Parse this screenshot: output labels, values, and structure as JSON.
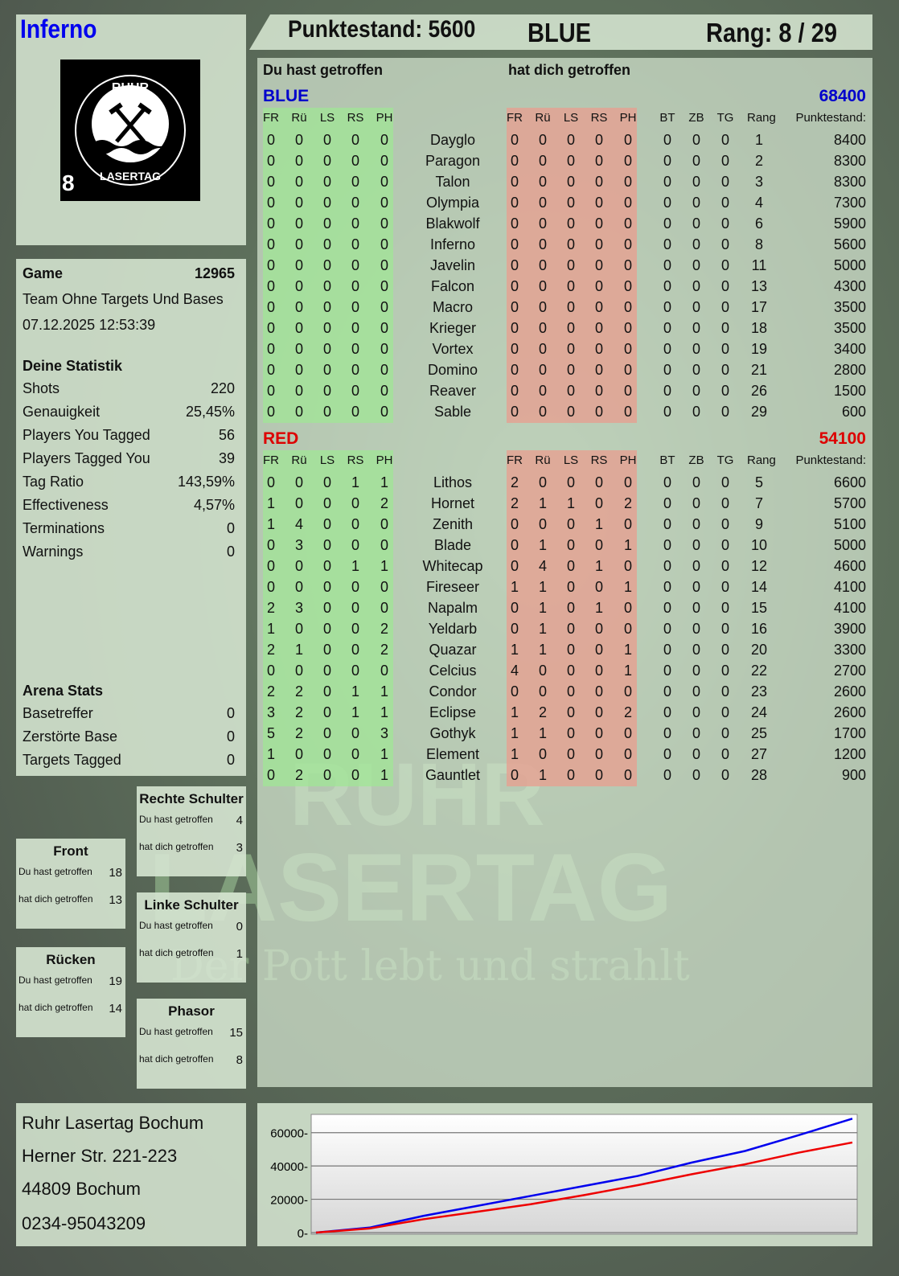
{
  "player": {
    "name": "Inferno",
    "logo_text": "RUHR LASERTAG",
    "logo_number": "8"
  },
  "header": {
    "score_label": "Punktestand: 5600",
    "team": "BLUE",
    "rank_label": "Rang: 8 / 29"
  },
  "colors": {
    "blue": "#0000cc",
    "red": "#dd0000",
    "hit_green": "#a8e6a0",
    "hit_red": "#e4a99a"
  },
  "watermark": {
    "line1": "RUHR",
    "line2": "LASERTAG",
    "line3": "Der Pott lebt und strahlt"
  },
  "game": {
    "label": "Game",
    "id": "12965",
    "mode": "Team Ohne Targets Und Bases",
    "datetime": "07.12.2025 12:53:39"
  },
  "stats": {
    "title": "Deine Statistik",
    "items": [
      {
        "label": "Shots",
        "value": "220"
      },
      {
        "label": "Genauigkeit",
        "value": "25,45%"
      },
      {
        "label": "Players You Tagged",
        "value": "56"
      },
      {
        "label": "Players Tagged You",
        "value": "39"
      },
      {
        "label": "Tag Ratio",
        "value": "143,59%"
      },
      {
        "label": "Effectiveness",
        "value": "4,57%"
      },
      {
        "label": "Terminations",
        "value": "0"
      },
      {
        "label": "Warnings",
        "value": "0"
      }
    ]
  },
  "arena": {
    "title": "Arena Stats",
    "items": [
      {
        "label": "Basetreffer",
        "value": "0"
      },
      {
        "label": "Zerstörte Base",
        "value": "0"
      },
      {
        "label": "Targets Tagged",
        "value": "0"
      }
    ]
  },
  "zones": [
    {
      "title": "Rechte Schulter",
      "you_hit_label": "Du hast getroffen",
      "you_hit": "4",
      "hit_you_label": "hat dich getroffen",
      "hit_you": "3"
    },
    {
      "title": "Front",
      "you_hit_label": "Du hast getroffen",
      "you_hit": "18",
      "hit_you_label": "hat dich getroffen",
      "hit_you": "13"
    },
    {
      "title": "Linke Schulter",
      "you_hit_label": "Du hast getroffen",
      "you_hit": "0",
      "hit_you_label": "hat dich getroffen",
      "hit_you": "1"
    },
    {
      "title": "Rücken",
      "you_hit_label": "Du hast getroffen",
      "you_hit": "19",
      "hit_you_label": "hat dich getroffen",
      "hit_you": "14"
    },
    {
      "title": "Phasor",
      "you_hit_label": "Du hast getroffen",
      "you_hit": "15",
      "hit_you_label": "hat dich getroffen",
      "hit_you": "8"
    }
  ],
  "table": {
    "you_hit_label": "Du hast getroffen",
    "hit_you_label": "hat dich getroffen",
    "columns": [
      "FR",
      "Rü",
      "LS",
      "RS",
      "PH",
      "FR",
      "Rü",
      "LS",
      "RS",
      "PH",
      "BT",
      "ZB",
      "TG",
      "Rang",
      "Punktestand:"
    ],
    "teams": [
      {
        "name": "BLUE",
        "total": "68400",
        "color": "#0000cc",
        "players": [
          {
            "name": "Dayglo",
            "hit": [
              0,
              0,
              0,
              0,
              0
            ],
            "got": [
              0,
              0,
              0,
              0,
              0
            ],
            "bt": 0,
            "zb": 0,
            "tg": 0,
            "rank": 1,
            "score": 8400
          },
          {
            "name": "Paragon",
            "hit": [
              0,
              0,
              0,
              0,
              0
            ],
            "got": [
              0,
              0,
              0,
              0,
              0
            ],
            "bt": 0,
            "zb": 0,
            "tg": 0,
            "rank": 2,
            "score": 8300
          },
          {
            "name": "Talon",
            "hit": [
              0,
              0,
              0,
              0,
              0
            ],
            "got": [
              0,
              0,
              0,
              0,
              0
            ],
            "bt": 0,
            "zb": 0,
            "tg": 0,
            "rank": 3,
            "score": 8300
          },
          {
            "name": "Olympia",
            "hit": [
              0,
              0,
              0,
              0,
              0
            ],
            "got": [
              0,
              0,
              0,
              0,
              0
            ],
            "bt": 0,
            "zb": 0,
            "tg": 0,
            "rank": 4,
            "score": 7300
          },
          {
            "name": "Blakwolf",
            "hit": [
              0,
              0,
              0,
              0,
              0
            ],
            "got": [
              0,
              0,
              0,
              0,
              0
            ],
            "bt": 0,
            "zb": 0,
            "tg": 0,
            "rank": 6,
            "score": 5900
          },
          {
            "name": "Inferno",
            "hit": [
              0,
              0,
              0,
              0,
              0
            ],
            "got": [
              0,
              0,
              0,
              0,
              0
            ],
            "bt": 0,
            "zb": 0,
            "tg": 0,
            "rank": 8,
            "score": 5600
          },
          {
            "name": "Javelin",
            "hit": [
              0,
              0,
              0,
              0,
              0
            ],
            "got": [
              0,
              0,
              0,
              0,
              0
            ],
            "bt": 0,
            "zb": 0,
            "tg": 0,
            "rank": 11,
            "score": 5000
          },
          {
            "name": "Falcon",
            "hit": [
              0,
              0,
              0,
              0,
              0
            ],
            "got": [
              0,
              0,
              0,
              0,
              0
            ],
            "bt": 0,
            "zb": 0,
            "tg": 0,
            "rank": 13,
            "score": 4300
          },
          {
            "name": "Macro",
            "hit": [
              0,
              0,
              0,
              0,
              0
            ],
            "got": [
              0,
              0,
              0,
              0,
              0
            ],
            "bt": 0,
            "zb": 0,
            "tg": 0,
            "rank": 17,
            "score": 3500
          },
          {
            "name": "Krieger",
            "hit": [
              0,
              0,
              0,
              0,
              0
            ],
            "got": [
              0,
              0,
              0,
              0,
              0
            ],
            "bt": 0,
            "zb": 0,
            "tg": 0,
            "rank": 18,
            "score": 3500
          },
          {
            "name": "Vortex",
            "hit": [
              0,
              0,
              0,
              0,
              0
            ],
            "got": [
              0,
              0,
              0,
              0,
              0
            ],
            "bt": 0,
            "zb": 0,
            "tg": 0,
            "rank": 19,
            "score": 3400
          },
          {
            "name": "Domino",
            "hit": [
              0,
              0,
              0,
              0,
              0
            ],
            "got": [
              0,
              0,
              0,
              0,
              0
            ],
            "bt": 0,
            "zb": 0,
            "tg": 0,
            "rank": 21,
            "score": 2800
          },
          {
            "name": "Reaver",
            "hit": [
              0,
              0,
              0,
              0,
              0
            ],
            "got": [
              0,
              0,
              0,
              0,
              0
            ],
            "bt": 0,
            "zb": 0,
            "tg": 0,
            "rank": 26,
            "score": 1500
          },
          {
            "name": "Sable",
            "hit": [
              0,
              0,
              0,
              0,
              0
            ],
            "got": [
              0,
              0,
              0,
              0,
              0
            ],
            "bt": 0,
            "zb": 0,
            "tg": 0,
            "rank": 29,
            "score": 600
          }
        ]
      },
      {
        "name": "RED",
        "total": "54100",
        "color": "#dd0000",
        "players": [
          {
            "name": "Lithos",
            "hit": [
              0,
              0,
              0,
              1,
              1
            ],
            "got": [
              2,
              0,
              0,
              0,
              0
            ],
            "bt": 0,
            "zb": 0,
            "tg": 0,
            "rank": 5,
            "score": 6600
          },
          {
            "name": "Hornet",
            "hit": [
              1,
              0,
              0,
              0,
              2
            ],
            "got": [
              2,
              1,
              1,
              0,
              2
            ],
            "bt": 0,
            "zb": 0,
            "tg": 0,
            "rank": 7,
            "score": 5700
          },
          {
            "name": "Zenith",
            "hit": [
              1,
              4,
              0,
              0,
              0
            ],
            "got": [
              0,
              0,
              0,
              1,
              0
            ],
            "bt": 0,
            "zb": 0,
            "tg": 0,
            "rank": 9,
            "score": 5100
          },
          {
            "name": "Blade",
            "hit": [
              0,
              3,
              0,
              0,
              0
            ],
            "got": [
              0,
              1,
              0,
              0,
              1
            ],
            "bt": 0,
            "zb": 0,
            "tg": 0,
            "rank": 10,
            "score": 5000
          },
          {
            "name": "Whitecap",
            "hit": [
              0,
              0,
              0,
              1,
              1
            ],
            "got": [
              0,
              4,
              0,
              1,
              0
            ],
            "bt": 0,
            "zb": 0,
            "tg": 0,
            "rank": 12,
            "score": 4600
          },
          {
            "name": "Fireseer",
            "hit": [
              0,
              0,
              0,
              0,
              0
            ],
            "got": [
              1,
              1,
              0,
              0,
              1
            ],
            "bt": 0,
            "zb": 0,
            "tg": 0,
            "rank": 14,
            "score": 4100
          },
          {
            "name": "Napalm",
            "hit": [
              2,
              3,
              0,
              0,
              0
            ],
            "got": [
              0,
              1,
              0,
              1,
              0
            ],
            "bt": 0,
            "zb": 0,
            "tg": 0,
            "rank": 15,
            "score": 4100
          },
          {
            "name": "Yeldarb",
            "hit": [
              1,
              0,
              0,
              0,
              2
            ],
            "got": [
              0,
              1,
              0,
              0,
              0
            ],
            "bt": 0,
            "zb": 0,
            "tg": 0,
            "rank": 16,
            "score": 3900
          },
          {
            "name": "Quazar",
            "hit": [
              2,
              1,
              0,
              0,
              2
            ],
            "got": [
              1,
              1,
              0,
              0,
              1
            ],
            "bt": 0,
            "zb": 0,
            "tg": 0,
            "rank": 20,
            "score": 3300
          },
          {
            "name": "Celcius",
            "hit": [
              0,
              0,
              0,
              0,
              0
            ],
            "got": [
              4,
              0,
              0,
              0,
              1
            ],
            "bt": 0,
            "zb": 0,
            "tg": 0,
            "rank": 22,
            "score": 2700
          },
          {
            "name": "Condor",
            "hit": [
              2,
              2,
              0,
              1,
              1
            ],
            "got": [
              0,
              0,
              0,
              0,
              0
            ],
            "bt": 0,
            "zb": 0,
            "tg": 0,
            "rank": 23,
            "score": 2600
          },
          {
            "name": "Eclipse",
            "hit": [
              3,
              2,
              0,
              1,
              1
            ],
            "got": [
              1,
              2,
              0,
              0,
              2
            ],
            "bt": 0,
            "zb": 0,
            "tg": 0,
            "rank": 24,
            "score": 2600
          },
          {
            "name": "Gothyk",
            "hit": [
              5,
              2,
              0,
              0,
              3
            ],
            "got": [
              1,
              1,
              0,
              0,
              0
            ],
            "bt": 0,
            "zb": 0,
            "tg": 0,
            "rank": 25,
            "score": 1700
          },
          {
            "name": "Element",
            "hit": [
              1,
              0,
              0,
              0,
              1
            ],
            "got": [
              1,
              0,
              0,
              0,
              0
            ],
            "bt": 0,
            "zb": 0,
            "tg": 0,
            "rank": 27,
            "score": 1200
          },
          {
            "name": "Gauntlet",
            "hit": [
              0,
              2,
              0,
              0,
              1
            ],
            "got": [
              0,
              1,
              0,
              0,
              0
            ],
            "bt": 0,
            "zb": 0,
            "tg": 0,
            "rank": 28,
            "score": 900
          }
        ]
      }
    ]
  },
  "address": {
    "line1": "Ruhr Lasertag Bochum",
    "line2": "Herner Str. 221-223",
    "line3": "44809 Bochum",
    "line4": "0234-95043209"
  },
  "chart_data": {
    "type": "line",
    "ylim": [
      0,
      70000
    ],
    "yticks": [
      "0",
      "20000",
      "40000",
      "60000"
    ],
    "grid": true,
    "x": [
      0,
      0.1,
      0.2,
      0.3,
      0.4,
      0.5,
      0.6,
      0.7,
      0.8,
      0.9,
      1.0
    ],
    "series": [
      {
        "color": "#0000ee",
        "values": [
          0,
          3000,
          10000,
          16000,
          22000,
          28000,
          34000,
          42000,
          49000,
          58500,
          68400
        ]
      },
      {
        "color": "#ee0000",
        "values": [
          0,
          2500,
          8000,
          12500,
          17000,
          22500,
          28500,
          35000,
          41000,
          48000,
          54100
        ]
      }
    ]
  }
}
